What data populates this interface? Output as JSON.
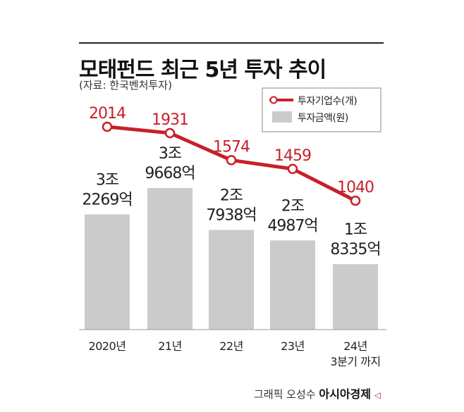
{
  "header": {
    "title": "모태펀드 최근 5년 투자 추이",
    "source": "(자료: 한국벤처투자)"
  },
  "credit": {
    "prefix": "그래픽 오성수",
    "brand": "아시아경제",
    "mark": "◁"
  },
  "colors": {
    "line": "#c8202a",
    "bar": "#cbcbcb",
    "text": "#222222"
  },
  "chart_data": {
    "type": "bar+line",
    "categories": [
      [
        "2020년"
      ],
      [
        "21년"
      ],
      [
        "22년"
      ],
      [
        "23년"
      ],
      [
        "24년",
        "3분기 까지"
      ]
    ],
    "legend": [
      "투자기업수(개)",
      "투자금액(원)"
    ],
    "legend_position": "top-right",
    "series": [
      {
        "name": "투자금액(원)",
        "type": "bar",
        "values": [
          32269,
          39668,
          27938,
          24987,
          18335
        ],
        "labels": [
          [
            "3조",
            "2269억"
          ],
          [
            "3조",
            "9668억"
          ],
          [
            "2조",
            "7938억"
          ],
          [
            "2조",
            "4987억"
          ],
          [
            "1조",
            "8335억"
          ]
        ],
        "unit": "억원"
      },
      {
        "name": "투자기업수(개)",
        "type": "line",
        "values": [
          2014,
          1931,
          1574,
          1459,
          1040
        ],
        "labels": [
          "2014",
          "1931",
          "1574",
          "1459",
          "1040"
        ],
        "unit": "개"
      }
    ],
    "grid": false
  }
}
